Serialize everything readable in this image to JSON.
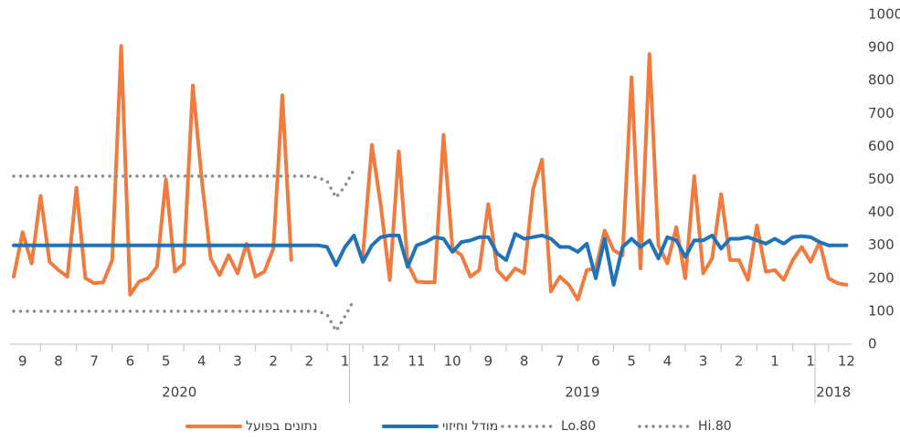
{
  "chart_data": {
    "type": "line",
    "categories": [
      null,
      "9",
      null,
      null,
      null,
      "8",
      null,
      null,
      null,
      "7",
      null,
      null,
      null,
      "6",
      null,
      null,
      null,
      "5",
      null,
      null,
      null,
      "4",
      null,
      null,
      null,
      "3",
      null,
      null,
      null,
      "2",
      null,
      null,
      null,
      "2",
      null,
      null,
      null,
      "1",
      null,
      null,
      null,
      "12",
      null,
      null,
      null,
      "11",
      null,
      null,
      null,
      "10",
      null,
      null,
      null,
      "9",
      null,
      null,
      null,
      "8",
      null,
      null,
      null,
      "7",
      null,
      null,
      null,
      "6",
      null,
      null,
      null,
      "5",
      null,
      null,
      null,
      "4",
      null,
      null,
      null,
      "3",
      null,
      null,
      null,
      "2",
      null,
      null,
      null,
      "1",
      null,
      null,
      null,
      "1",
      null,
      null,
      null,
      "12"
    ],
    "groups": [
      {
        "label": "2020",
        "start": 0,
        "end": 37
      },
      {
        "label": "2019",
        "start": 38,
        "end": 89
      },
      {
        "label": "2018",
        "start": 90,
        "end": 93
      }
    ],
    "ylim": [
      0,
      1000
    ],
    "yticks": [
      0,
      100,
      200,
      300,
      400,
      500,
      600,
      700,
      800,
      900,
      1000
    ],
    "series": [
      {
        "name": "נתונים בפועל",
        "color": "#f07b3f",
        "style": "solid",
        "values": [
          205,
          340,
          245,
          450,
          250,
          225,
          205,
          475,
          200,
          185,
          188,
          255,
          905,
          150,
          190,
          200,
          235,
          500,
          220,
          245,
          785,
          500,
          260,
          210,
          270,
          215,
          305,
          205,
          220,
          290,
          755,
          255,
          null,
          null,
          null,
          null,
          null,
          null,
          null,
          270,
          605,
          420,
          195,
          585,
          245,
          190,
          188,
          188,
          635,
          290,
          270,
          205,
          225,
          425,
          225,
          195,
          230,
          215,
          470,
          560,
          160,
          205,
          180,
          135,
          225,
          230,
          345,
          285,
          270,
          810,
          230,
          880,
          300,
          245,
          355,
          200,
          510,
          215,
          260,
          455,
          255,
          255,
          195,
          360,
          220,
          225,
          195,
          255,
          295,
          250,
          310,
          200,
          185,
          180
        ]
      },
      {
        "name": "מודל וחיזוי",
        "color": "#2272b8",
        "style": "solid",
        "values": [
          300,
          300,
          300,
          300,
          300,
          300,
          300,
          300,
          300,
          300,
          300,
          300,
          300,
          300,
          300,
          300,
          300,
          300,
          300,
          300,
          300,
          300,
          300,
          300,
          300,
          300,
          300,
          300,
          300,
          300,
          300,
          300,
          300,
          300,
          300,
          295,
          240,
          295,
          330,
          250,
          300,
          325,
          330,
          330,
          235,
          300,
          310,
          325,
          320,
          280,
          310,
          315,
          325,
          325,
          275,
          255,
          335,
          320,
          325,
          330,
          320,
          295,
          295,
          280,
          305,
          200,
          320,
          180,
          295,
          320,
          295,
          315,
          260,
          325,
          315,
          265,
          315,
          315,
          330,
          290,
          320,
          320,
          325,
          315,
          305,
          320,
          305,
          325,
          328,
          325,
          310,
          300,
          300,
          300
        ]
      },
      {
        "name": "Lo.80",
        "color": "#8c8c8c",
        "style": "dotted",
        "values": [
          100,
          100,
          100,
          100,
          100,
          100,
          100,
          100,
          100,
          100,
          100,
          100,
          100,
          100,
          100,
          100,
          100,
          100,
          100,
          100,
          100,
          100,
          100,
          100,
          100,
          100,
          100,
          100,
          100,
          100,
          100,
          100,
          100,
          100,
          100,
          90,
          40,
          85,
          135,
          null,
          null,
          null,
          null,
          null,
          null,
          null,
          null,
          null,
          null,
          null,
          null,
          null,
          null,
          null,
          null,
          null,
          null,
          null,
          null,
          null,
          null,
          null,
          null,
          null,
          null,
          null,
          null,
          null,
          null,
          null,
          null,
          null,
          null,
          null,
          null,
          null,
          null,
          null,
          null,
          null,
          null,
          null,
          null,
          null,
          null,
          null,
          null,
          null,
          null,
          null,
          null,
          null,
          null,
          null
        ]
      },
      {
        "name": "Hi.80",
        "color": "#8c8c8c",
        "style": "dotted",
        "values": [
          510,
          510,
          510,
          510,
          510,
          510,
          510,
          510,
          510,
          510,
          510,
          510,
          510,
          510,
          510,
          510,
          510,
          510,
          510,
          510,
          510,
          510,
          510,
          510,
          510,
          510,
          510,
          510,
          510,
          510,
          510,
          510,
          510,
          510,
          505,
          495,
          445,
          480,
          530,
          null,
          null,
          null,
          null,
          null,
          null,
          null,
          null,
          null,
          null,
          null,
          null,
          null,
          null,
          null,
          null,
          null,
          null,
          null,
          null,
          null,
          null,
          null,
          null,
          null,
          null,
          null,
          null,
          null,
          null,
          null,
          null,
          null,
          null,
          null,
          null,
          null,
          null,
          null,
          null,
          null,
          null,
          null,
          null,
          null,
          null,
          null,
          null,
          null,
          null,
          null,
          null,
          null,
          null,
          null
        ]
      }
    ]
  }
}
